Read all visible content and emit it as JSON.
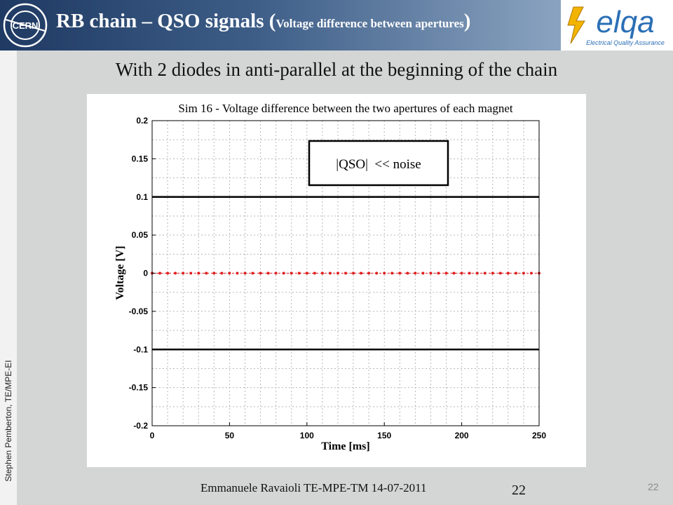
{
  "header": {
    "title_main": "RB chain – QSO signals (",
    "title_small": "Voltage difference between apertures",
    "title_end": ")",
    "cern_logo_text": "CERN",
    "elqa_logo_text": "elqa",
    "elqa_logo_sub": "Electrical Quality Assurance"
  },
  "subtitle": "With 2 diodes in anti-parallel at the beginning of the chain",
  "side_credit": "Stephen Pemberton, TE/MPE-EI",
  "footer": {
    "text": "Emmanuele Ravaioli    TE-MPE-TM    14-07-2011",
    "number": "22",
    "slide_number": "22"
  },
  "colors": {
    "data_series": "#e02020",
    "threshold_lines": "#000000"
  },
  "chart_data": {
    "type": "scatter",
    "title": "Sim 16 - Voltage difference between the two apertures of each magnet",
    "xlabel": "Time [ms]",
    "ylabel": "Voltage [V]",
    "xlim": [
      0,
      250
    ],
    "ylim": [
      -0.2,
      0.2
    ],
    "xticks": [
      "0",
      "50",
      "100",
      "150",
      "200",
      "250"
    ],
    "yticks": [
      "0.2",
      "0.15",
      "0.1",
      "0.05",
      "0",
      "-0.05",
      "-0.1",
      "-0.15",
      "-0.2"
    ],
    "grid": true,
    "thresholds": [
      0.1,
      -0.1
    ],
    "annotation": "|QSO|  << noise",
    "series": [
      {
        "x": [
          0,
          5,
          10,
          15,
          20,
          25,
          30,
          35,
          40,
          45,
          50,
          55,
          60,
          65,
          70,
          75,
          80,
          85,
          90,
          95,
          100,
          105,
          110,
          115,
          120,
          125,
          130,
          135,
          140,
          145,
          150,
          155,
          160,
          165,
          170,
          175,
          180,
          185,
          190,
          195,
          200,
          205,
          210,
          215,
          220,
          225,
          230,
          235,
          240,
          245,
          250
        ],
        "y": [
          0,
          0,
          0,
          0,
          0,
          0,
          0,
          0,
          0,
          0,
          0,
          0,
          0,
          0,
          0,
          0,
          0,
          0,
          0,
          0,
          0,
          0,
          0,
          0,
          0,
          0,
          0,
          0,
          0,
          0,
          0,
          0,
          0,
          0,
          0,
          0,
          0,
          0,
          0,
          0,
          0,
          0,
          0,
          0,
          0,
          0,
          0,
          0,
          0,
          0,
          0
        ]
      }
    ]
  }
}
